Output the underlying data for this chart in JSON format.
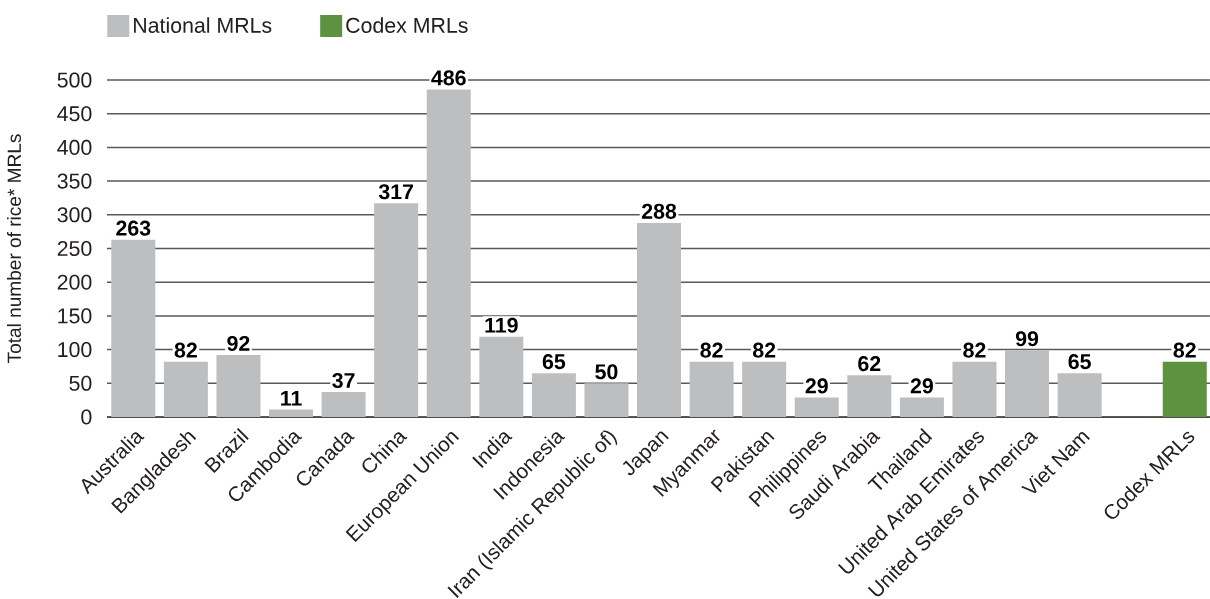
{
  "chart_data": {
    "type": "bar",
    "ylabel": "Total number of rice* MRLs",
    "categories": [
      "Australia",
      "Bangladesh",
      "Brazil",
      "Cambodia",
      "Canada",
      "China",
      "European Union",
      "India",
      "Indonesia",
      "Iran (Islamic Republic of)",
      "Japan",
      "Myanmar",
      "Pakistan",
      "Philippines",
      "Saudi Arabia",
      "Thailand",
      "United Arab Emirates",
      "United States of America",
      "Viet Nam",
      null,
      "Codex MRLs"
    ],
    "series": [
      {
        "name": "National MRLs",
        "color": "#bcbec0",
        "values": [
          263,
          82,
          92,
          11,
          37,
          317,
          486,
          119,
          65,
          50,
          288,
          82,
          82,
          29,
          62,
          29,
          82,
          99,
          65,
          null,
          null
        ]
      },
      {
        "name": "Codex MRLs",
        "color": "#5e9240",
        "values": [
          null,
          null,
          null,
          null,
          null,
          null,
          null,
          null,
          null,
          null,
          null,
          null,
          null,
          null,
          null,
          null,
          null,
          null,
          null,
          null,
          82
        ]
      }
    ],
    "ylim": [
      0,
      500
    ],
    "yticks": [
      0,
      50,
      100,
      150,
      200,
      250,
      300,
      350,
      400,
      450,
      500
    ],
    "grid": "y",
    "legend": "top left",
    "data_labels": true
  }
}
